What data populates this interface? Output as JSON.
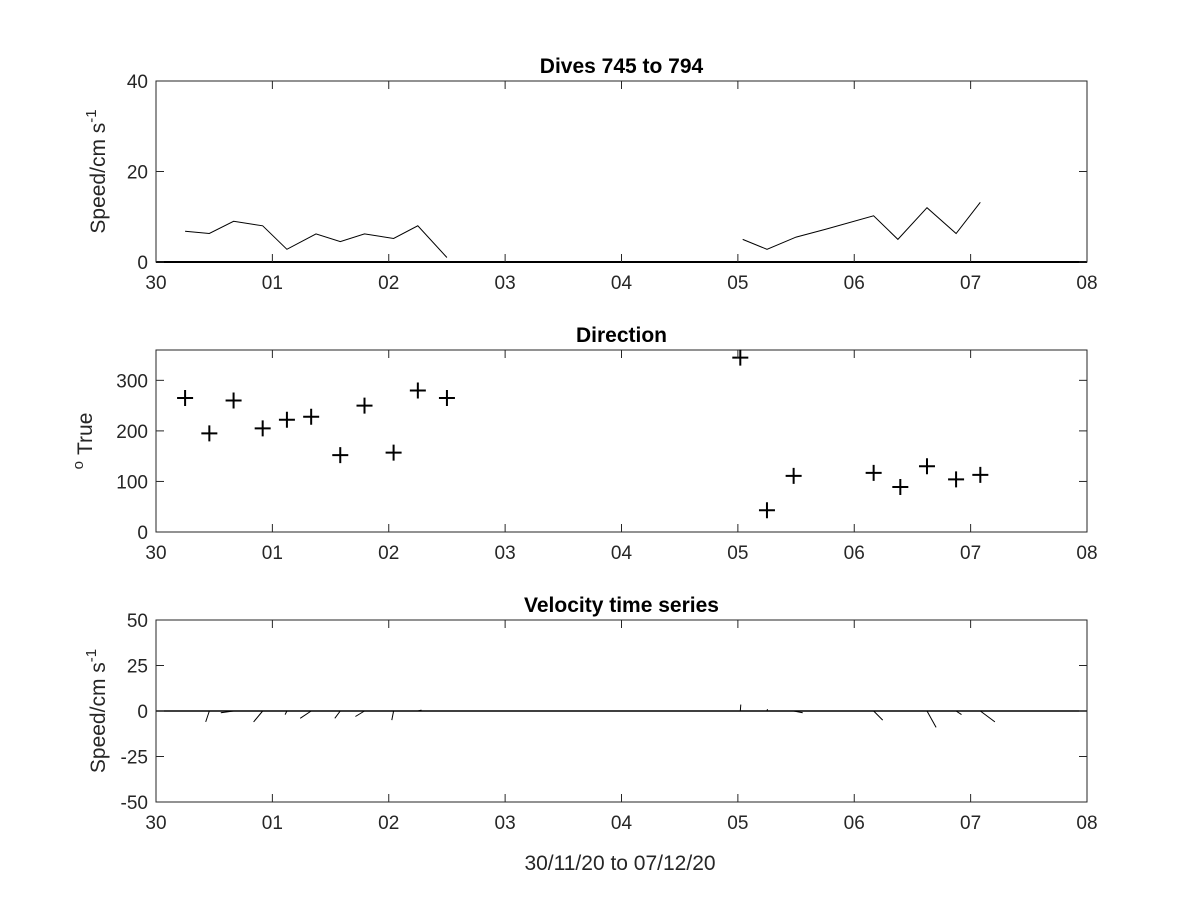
{
  "figure": {
    "xlabel": "30/11/20 to 07/12/20"
  },
  "chart_data": [
    {
      "type": "line",
      "title": "Dives 745 to 794",
      "ylabel_main": "Speed/cm s",
      "ylabel_sup": "-1",
      "ylim": [
        0,
        40
      ],
      "yticks": [
        0,
        20,
        40
      ],
      "ytick_labels": [
        "0",
        "20",
        "40"
      ],
      "xlim": [
        "2020-11-30",
        "2020-12-08"
      ],
      "xtick_labels": [
        "30",
        "01",
        "02",
        "03",
        "04",
        "05",
        "06",
        "07",
        "08"
      ],
      "grid": false,
      "series": [
        {
          "segments": [
            {
              "x": [
                "2020-11-30 06:00",
                "2020-11-30 11:00",
                "2020-11-30 16:00",
                "2020-11-30 22:00",
                "2020-12-01 03:00",
                "2020-12-01 09:00",
                "2020-12-01 14:00",
                "2020-12-01 19:00",
                "2020-12-02 01:00",
                "2020-12-02 06:00",
                "2020-12-02 12:00"
              ],
              "y": [
                6.8,
                6.3,
                9,
                8,
                2.8,
                6.2,
                4.5,
                6.2,
                5.2,
                8,
                1
              ]
            },
            {
              "x": [
                "2020-12-05 01:00",
                "2020-12-05 06:00",
                "2020-12-05 12:00",
                "2020-12-05 18:00",
                "2020-12-06 04:00",
                "2020-12-06 09:00",
                "2020-12-06 15:00",
                "2020-12-06 21:00",
                "2020-12-07 02:00"
              ],
              "y": [
                5,
                2.8,
                5.5,
                7.2,
                10.2,
                5,
                12,
                6.3,
                13.2
              ]
            }
          ],
          "zero_line": true
        }
      ]
    },
    {
      "type": "scatter",
      "title": "Direction",
      "ylabel_main": "True",
      "ylabel_sup": "o",
      "ylim": [
        0,
        360
      ],
      "yticks": [
        0,
        100,
        200,
        300
      ],
      "ytick_labels": [
        "0",
        "100",
        "200",
        "300"
      ],
      "xlim": [
        "2020-11-30",
        "2020-12-08"
      ],
      "xtick_labels": [
        "30",
        "01",
        "02",
        "03",
        "04",
        "05",
        "06",
        "07",
        "08"
      ],
      "grid": false,
      "marker": "+",
      "series": [
        {
          "x": [
            "2020-11-30 06:00",
            "2020-11-30 11:00",
            "2020-11-30 16:00",
            "2020-11-30 22:00",
            "2020-12-01 03:00",
            "2020-12-01 08:00",
            "2020-12-01 14:00",
            "2020-12-01 19:00",
            "2020-12-02 01:00",
            "2020-12-02 06:00",
            "2020-12-02 12:00",
            "2020-12-05 00:30",
            "2020-12-05 06:00",
            "2020-12-05 11:30",
            "2020-12-06 04:00",
            "2020-12-06 09:30",
            "2020-12-06 15:00",
            "2020-12-06 21:00",
            "2020-12-07 02:00"
          ],
          "y": [
            265,
            195,
            260,
            205,
            222,
            228,
            152,
            250,
            157,
            280,
            265,
            345,
            43,
            111,
            117,
            89,
            130,
            104,
            113
          ]
        }
      ]
    },
    {
      "type": "line",
      "title": "Velocity time series",
      "ylabel_main": "Speed/cm s",
      "ylabel_sup": "-1",
      "ylim": [
        -50,
        50
      ],
      "yticks": [
        -50,
        -25,
        0,
        25,
        50
      ],
      "ytick_labels": [
        "-50",
        "-25",
        "0",
        "25",
        "50"
      ],
      "xlim": [
        "2020-11-30",
        "2020-12-08"
      ],
      "xtick_labels": [
        "30",
        "01",
        "02",
        "03",
        "04",
        "05",
        "06",
        "07",
        "08"
      ],
      "grid": false,
      "zero_line": true,
      "stick_vectors": {
        "origin_x": [
          "2020-11-30 11:00",
          "2020-11-30 16:00",
          "2020-11-30 22:00",
          "2020-12-01 03:00",
          "2020-12-01 08:00",
          "2020-12-01 14:00",
          "2020-12-01 19:00",
          "2020-12-02 01:00",
          "2020-12-02 06:00",
          "2020-12-05 00:30",
          "2020-12-05 06:00",
          "2020-12-05 11:30",
          "2020-12-06 04:00",
          "2020-12-06 15:00",
          "2020-12-06 21:00",
          "2020-12-07 02:00"
        ],
        "u": [
          -2,
          -7,
          -5,
          -1,
          -6,
          -3,
          -5,
          -1,
          2,
          0.3,
          0.3,
          5,
          5,
          5,
          3,
          8
        ],
        "v": [
          -6,
          -1,
          -6,
          -2,
          -4,
          -4,
          -3,
          -5,
          0.5,
          3.5,
          1,
          -1,
          -5,
          -9,
          -2,
          -6
        ]
      }
    }
  ]
}
